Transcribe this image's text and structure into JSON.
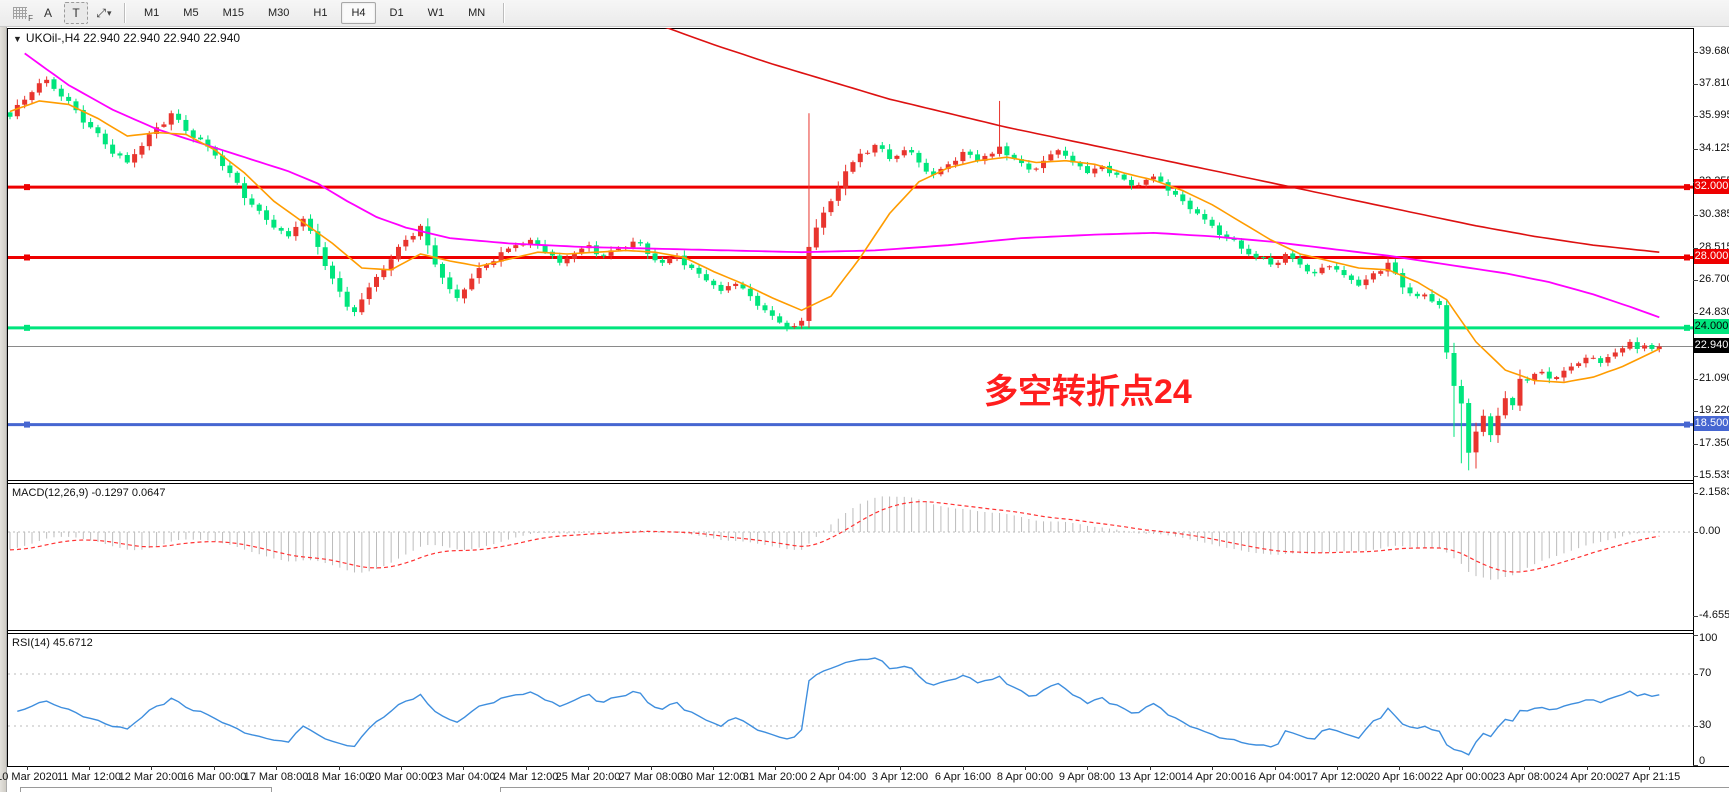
{
  "toolbar": {
    "tools": [
      {
        "name": "period-separators",
        "label": "F"
      },
      {
        "name": "text-label-tool",
        "label": "A"
      },
      {
        "name": "text-tool",
        "label": "T"
      },
      {
        "name": "cursor-arrows-tool",
        "label": "⤢"
      },
      {
        "name": "tool-dropdown",
        "label": "▾"
      }
    ],
    "timeframes": [
      {
        "label": "M1",
        "active": false
      },
      {
        "label": "M5",
        "active": false
      },
      {
        "label": "M15",
        "active": false
      },
      {
        "label": "M30",
        "active": false
      },
      {
        "label": "H1",
        "active": false
      },
      {
        "label": "H4",
        "active": true
      },
      {
        "label": "D1",
        "active": false
      },
      {
        "label": "W1",
        "active": false
      },
      {
        "label": "MN",
        "active": false
      }
    ]
  },
  "chart": {
    "title": "UKOil-,H4  22.940 22.940 22.940 22.940",
    "dropdown_glyph": "▼"
  },
  "annotation": {
    "text": "多空转折点24",
    "color": "#ff1e1e"
  },
  "price_axis": {
    "ticks": [
      39.68,
      37.81,
      35.995,
      34.125,
      32.255,
      30.385,
      28.515,
      26.7,
      24.83,
      21.09,
      19.22,
      17.35,
      15.535
    ],
    "badges": [
      {
        "text": "32.000",
        "price": 32.0,
        "bg": "#ee0000",
        "fg": "#ffffff"
      },
      {
        "text": "28.000",
        "price": 28.0,
        "bg": "#ee0000",
        "fg": "#ffffff"
      },
      {
        "text": "24.000",
        "price": 24.0,
        "bg": "#00e57d",
        "fg": "#000000"
      },
      {
        "text": "22.940",
        "price": 22.94,
        "bg": "#000000",
        "fg": "#ffffff"
      },
      {
        "text": "18.500",
        "price": 18.5,
        "bg": "#4666d1",
        "fg": "#ffffff"
      }
    ]
  },
  "hlines": [
    {
      "price": 32.0,
      "color": "#ee0000",
      "width": 3,
      "name": "hline-32000"
    },
    {
      "price": 28.0,
      "color": "#ee0000",
      "width": 3,
      "name": "hline-28000"
    },
    {
      "price": 24.0,
      "color": "#00e57d",
      "width": 3,
      "name": "hline-24000"
    },
    {
      "price": 22.94,
      "color": "#8a8a8a",
      "width": 1,
      "name": "bid-price-line"
    },
    {
      "price": 18.5,
      "color": "#4666d1",
      "width": 3,
      "name": "hline-18500"
    }
  ],
  "indicators": {
    "macd": {
      "label": "MACD(12,26,9)",
      "values": "-0.1297 0.0647",
      "axis_max": 2.1583,
      "axis_zero": "0.00",
      "axis_min": -4.6554,
      "axis_labels": [
        "2.1583",
        "0.00",
        "-4.6554"
      ]
    },
    "rsi": {
      "label": "RSI(14)",
      "value": "45.6712",
      "levels": [
        100,
        70,
        30,
        0
      ]
    }
  },
  "time_axis": {
    "labels": [
      "10 Mar 2020",
      "11 Mar 12:00",
      "12 Mar 20:00",
      "16 Mar 00:00",
      "17 Mar 08:00",
      "18 Mar 16:00",
      "20 Mar 00:00",
      "23 Mar 04:00",
      "24 Mar 12:00",
      "25 Mar 20:00",
      "27 Mar 08:00",
      "30 Mar 12:00",
      "31 Mar 20:00",
      "2 Apr 04:00",
      "3 Apr 12:00",
      "6 Apr 16:00",
      "8 Apr 00:00",
      "9 Apr 08:00",
      "13 Apr 12:00",
      "14 Apr 20:00",
      "16 Apr 04:00",
      "17 Apr 12:00",
      "20 Apr 16:00",
      "22 Apr 00:00",
      "23 Apr 08:00",
      "24 Apr 20:00",
      "27 Apr 21:15"
    ]
  },
  "chart_data": {
    "type": "candlestick",
    "symbol": "UKOil-",
    "timeframe": "H4",
    "bars": 226,
    "up_color": "#e8352e",
    "down_color": "#00e57d",
    "note": "Chinese color convention: red = bullish, green = bearish",
    "close_keypoints": [
      [
        0,
        36.0
      ],
      [
        3,
        37.4
      ],
      [
        5,
        38.1
      ],
      [
        8,
        36.9
      ],
      [
        11,
        35.4
      ],
      [
        14,
        33.9
      ],
      [
        16,
        33.4
      ],
      [
        19,
        35.0
      ],
      [
        22,
        36.2
      ],
      [
        24,
        35.2
      ],
      [
        27,
        34.3
      ],
      [
        30,
        32.8
      ],
      [
        33,
        31.0
      ],
      [
        36,
        29.7
      ],
      [
        38,
        29.2
      ],
      [
        40,
        30.2
      ],
      [
        42,
        28.6
      ],
      [
        44,
        26.8
      ],
      [
        46,
        25.2
      ],
      [
        47,
        24.9
      ],
      [
        49,
        26.3
      ],
      [
        52,
        27.9
      ],
      [
        54,
        29.0
      ],
      [
        56,
        29.8
      ],
      [
        58,
        27.6
      ],
      [
        60,
        26.2
      ],
      [
        61,
        25.7
      ],
      [
        63,
        26.8
      ],
      [
        65,
        27.6
      ],
      [
        67,
        28.3
      ],
      [
        69,
        28.7
      ],
      [
        71,
        29.0
      ],
      [
        73,
        28.3
      ],
      [
        75,
        27.7
      ],
      [
        77,
        28.2
      ],
      [
        79,
        28.7
      ],
      [
        81,
        28.1
      ],
      [
        83,
        28.5
      ],
      [
        85,
        28.9
      ],
      [
        87,
        28.2
      ],
      [
        89,
        27.7
      ],
      [
        91,
        28.1
      ],
      [
        93,
        27.4
      ],
      [
        95,
        26.7
      ],
      [
        97,
        26.1
      ],
      [
        99,
        26.5
      ],
      [
        101,
        25.8
      ],
      [
        103,
        25.0
      ],
      [
        105,
        24.3
      ],
      [
        107,
        24.1
      ],
      [
        108,
        24.4
      ],
      [
        109,
        28.6
      ],
      [
        110,
        29.7
      ],
      [
        112,
        31.2
      ],
      [
        114,
        32.9
      ],
      [
        116,
        33.9
      ],
      [
        118,
        34.4
      ],
      [
        120,
        33.6
      ],
      [
        122,
        34.1
      ],
      [
        124,
        33.4
      ],
      [
        126,
        32.7
      ],
      [
        128,
        33.3
      ],
      [
        130,
        34.0
      ],
      [
        132,
        33.5
      ],
      [
        134,
        33.9
      ],
      [
        135,
        34.3
      ],
      [
        137,
        33.6
      ],
      [
        139,
        33.0
      ],
      [
        141,
        33.5
      ],
      [
        143,
        34.1
      ],
      [
        145,
        33.4
      ],
      [
        147,
        32.8
      ],
      [
        149,
        33.2
      ],
      [
        151,
        32.7
      ],
      [
        153,
        32.1
      ],
      [
        156,
        32.6
      ],
      [
        158,
        31.8
      ],
      [
        160,
        31.2
      ],
      [
        162,
        30.5
      ],
      [
        164,
        29.8
      ],
      [
        166,
        29.1
      ],
      [
        168,
        28.5
      ],
      [
        170,
        28.0
      ],
      [
        172,
        27.6
      ],
      [
        174,
        28.2
      ],
      [
        176,
        27.6
      ],
      [
        178,
        27.1
      ],
      [
        180,
        27.5
      ],
      [
        182,
        27.0
      ],
      [
        184,
        26.4
      ],
      [
        186,
        27.1
      ],
      [
        188,
        27.7
      ],
      [
        190,
        26.3
      ],
      [
        192,
        25.8
      ],
      [
        194,
        25.5
      ],
      [
        195,
        25.3
      ],
      [
        196,
        22.6
      ],
      [
        197,
        20.7
      ],
      [
        198,
        19.7
      ],
      [
        199,
        16.9
      ],
      [
        200,
        18.1
      ],
      [
        201,
        19.0
      ],
      [
        202,
        17.9
      ],
      [
        203,
        19.0
      ],
      [
        204,
        20.0
      ],
      [
        205,
        19.6
      ],
      [
        206,
        21.1
      ],
      [
        207,
        21.0
      ],
      [
        209,
        21.5
      ],
      [
        211,
        21.2
      ],
      [
        213,
        21.8
      ],
      [
        215,
        22.3
      ],
      [
        217,
        22.0
      ],
      [
        219,
        22.6
      ],
      [
        221,
        23.2
      ],
      [
        222,
        22.8
      ],
      [
        223,
        23.0
      ],
      [
        224,
        22.8
      ],
      [
        225,
        22.94
      ]
    ],
    "wick_overrides": {
      "109": {
        "h": 36.2,
        "l": 24.0
      },
      "135": {
        "h": 36.9
      },
      "197": {
        "l": 17.8
      },
      "198": {
        "l": 16.3
      },
      "199": {
        "l": 15.9
      },
      "200": {
        "l": 16.0
      }
    },
    "ma_orange": [
      [
        0,
        36.3
      ],
      [
        4,
        36.9
      ],
      [
        8,
        36.7
      ],
      [
        12,
        35.9
      ],
      [
        16,
        34.9
      ],
      [
        20,
        35.1
      ],
      [
        24,
        35.0
      ],
      [
        28,
        34.1
      ],
      [
        32,
        32.8
      ],
      [
        36,
        31.2
      ],
      [
        40,
        30.0
      ],
      [
        44,
        28.8
      ],
      [
        48,
        27.4
      ],
      [
        52,
        27.3
      ],
      [
        56,
        28.2
      ],
      [
        60,
        27.8
      ],
      [
        64,
        27.5
      ],
      [
        68,
        27.9
      ],
      [
        72,
        28.3
      ],
      [
        76,
        28.2
      ],
      [
        80,
        28.3
      ],
      [
        84,
        28.4
      ],
      [
        88,
        28.3
      ],
      [
        92,
        28.0
      ],
      [
        96,
        27.2
      ],
      [
        100,
        26.5
      ],
      [
        104,
        25.7
      ],
      [
        108,
        25.0
      ],
      [
        112,
        25.8
      ],
      [
        116,
        28.0
      ],
      [
        120,
        30.5
      ],
      [
        124,
        32.3
      ],
      [
        128,
        33.1
      ],
      [
        132,
        33.5
      ],
      [
        136,
        33.7
      ],
      [
        140,
        33.4
      ],
      [
        144,
        33.5
      ],
      [
        148,
        33.3
      ],
      [
        152,
        32.8
      ],
      [
        156,
        32.4
      ],
      [
        160,
        31.8
      ],
      [
        164,
        31.0
      ],
      [
        168,
        30.0
      ],
      [
        172,
        29.0
      ],
      [
        176,
        28.2
      ],
      [
        180,
        27.8
      ],
      [
        184,
        27.4
      ],
      [
        188,
        27.3
      ],
      [
        192,
        26.6
      ],
      [
        196,
        25.6
      ],
      [
        200,
        23.2
      ],
      [
        204,
        21.6
      ],
      [
        208,
        21.0
      ],
      [
        212,
        20.9
      ],
      [
        216,
        21.2
      ],
      [
        220,
        21.8
      ],
      [
        223,
        22.4
      ],
      [
        225,
        22.8
      ]
    ],
    "ma_magenta": [
      [
        2,
        39.6
      ],
      [
        8,
        37.8
      ],
      [
        14,
        36.4
      ],
      [
        20,
        35.3
      ],
      [
        26,
        34.5
      ],
      [
        32,
        33.7
      ],
      [
        38,
        32.9
      ],
      [
        42,
        32.2
      ],
      [
        46,
        31.2
      ],
      [
        50,
        30.3
      ],
      [
        54,
        29.7
      ],
      [
        60,
        29.1
      ],
      [
        68,
        28.8
      ],
      [
        78,
        28.6
      ],
      [
        88,
        28.5
      ],
      [
        98,
        28.4
      ],
      [
        108,
        28.3
      ],
      [
        118,
        28.4
      ],
      [
        128,
        28.7
      ],
      [
        138,
        29.1
      ],
      [
        148,
        29.3
      ],
      [
        156,
        29.4
      ],
      [
        164,
        29.2
      ],
      [
        172,
        28.9
      ],
      [
        180,
        28.5
      ],
      [
        188,
        28.1
      ],
      [
        196,
        27.6
      ],
      [
        204,
        27.1
      ],
      [
        210,
        26.6
      ],
      [
        216,
        25.9
      ],
      [
        221,
        25.2
      ],
      [
        225,
        24.6
      ]
    ],
    "ma_red": [
      [
        88,
        41.3
      ],
      [
        96,
        40.1
      ],
      [
        104,
        39.0
      ],
      [
        112,
        38.0
      ],
      [
        120,
        37.0
      ],
      [
        128,
        36.2
      ],
      [
        136,
        35.4
      ],
      [
        144,
        34.7
      ],
      [
        152,
        34.0
      ],
      [
        160,
        33.3
      ],
      [
        168,
        32.6
      ],
      [
        176,
        31.9
      ],
      [
        184,
        31.2
      ],
      [
        192,
        30.5
      ],
      [
        200,
        29.8
      ],
      [
        208,
        29.2
      ],
      [
        216,
        28.7
      ],
      [
        225,
        28.3
      ]
    ],
    "ma_colors": {
      "orange": "#ff9c00",
      "magenta": "#ff00ff",
      "red": "#dd1111"
    },
    "macd_style": {
      "histogram": "#bcbcbc",
      "signal": "#ff3333"
    },
    "rsi_style": {
      "line": "#3e8ede"
    }
  }
}
